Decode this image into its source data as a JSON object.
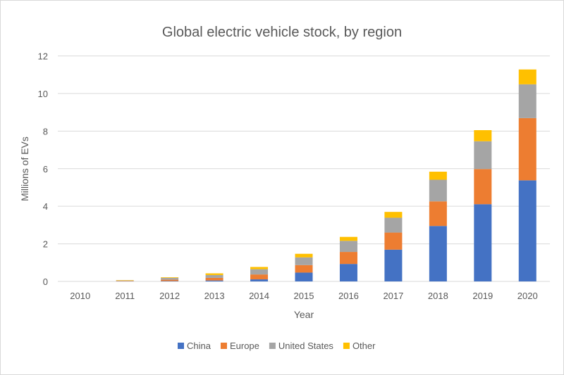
{
  "chart_data": {
    "type": "bar",
    "stacked": true,
    "title": "Global electric vehicle stock, by region",
    "xlabel": "Year",
    "ylabel": "Millions of EVs",
    "ylim": [
      0,
      12
    ],
    "yticks": [
      0,
      2,
      4,
      6,
      8,
      10,
      12
    ],
    "grid": true,
    "legend_position": "bottom",
    "categories": [
      "2010",
      "2011",
      "2012",
      "2013",
      "2014",
      "2015",
      "2016",
      "2017",
      "2018",
      "2019",
      "2020"
    ],
    "series": [
      {
        "name": "China",
        "color": "#4472C4",
        "values": [
          0.0,
          0.01,
          0.02,
          0.05,
          0.11,
          0.47,
          0.93,
          1.69,
          2.95,
          4.11,
          5.38
        ]
      },
      {
        "name": "Europe",
        "color": "#ED7D31",
        "values": [
          0.0,
          0.02,
          0.07,
          0.14,
          0.26,
          0.4,
          0.64,
          0.91,
          1.31,
          1.87,
          3.31
        ]
      },
      {
        "name": "United States",
        "color": "#A5A5A5",
        "values": [
          0.0,
          0.02,
          0.1,
          0.15,
          0.28,
          0.41,
          0.59,
          0.79,
          1.15,
          1.48,
          1.8
        ]
      },
      {
        "name": "Other",
        "color": "#FFC000",
        "values": [
          0.0,
          0.02,
          0.03,
          0.09,
          0.12,
          0.19,
          0.21,
          0.31,
          0.43,
          0.59,
          0.79
        ]
      }
    ]
  }
}
